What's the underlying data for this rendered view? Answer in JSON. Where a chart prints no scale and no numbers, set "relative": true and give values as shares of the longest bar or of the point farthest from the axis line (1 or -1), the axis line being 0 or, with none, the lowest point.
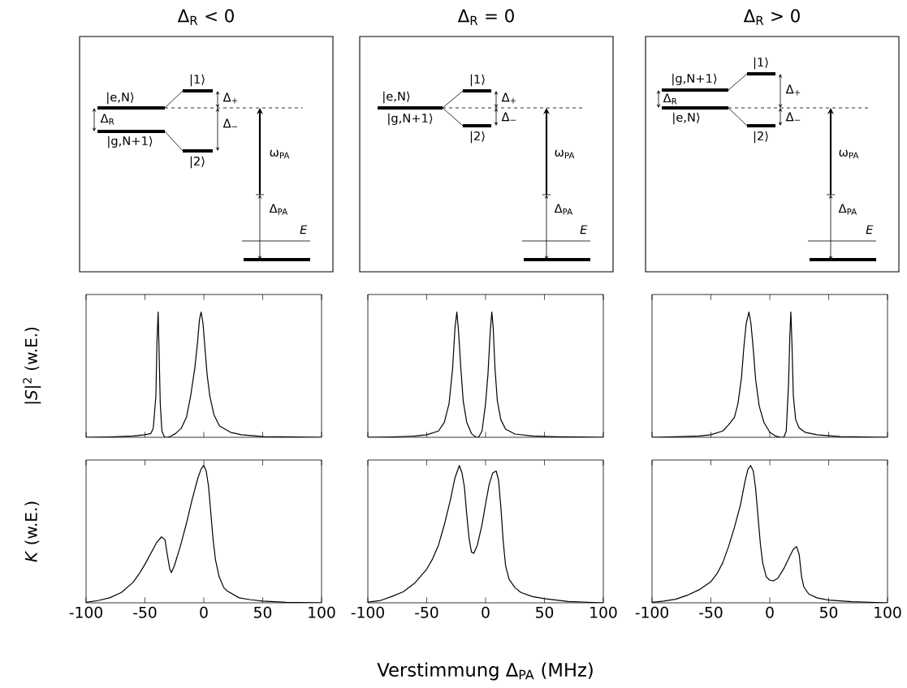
{
  "chart_data": [
    {
      "type": "other",
      "title": "Δ$_{R}$ < 0",
      "annotations": [
        "|e,N⟩",
        "|g,N+1⟩",
        "|1⟩",
        "|2⟩",
        "Δ$_{+}$",
        "Δ$_{−}$",
        "Δ$_{R}$",
        "ω$_{PA}$",
        "Δ$_{PA}$",
        "E"
      ]
    },
    {
      "type": "other",
      "title": "Δ$_{R}$ = 0",
      "annotations": [
        "|e,N⟩",
        "|g,N+1⟩",
        "|1⟩",
        "|2⟩",
        "Δ$_{+}$",
        "Δ$_{−}$",
        "ω$_{PA}$",
        "Δ$_{PA}$",
        "E"
      ]
    },
    {
      "type": "other",
      "title": "Δ$_{R}$ > 0",
      "annotations": [
        "|g,N+1⟩",
        "|e,N⟩",
        "|1⟩",
        "|2⟩",
        "Δ$_{+}$",
        "Δ$_{−}$",
        "Δ$_{R}$",
        "ω$_{PA}$",
        "Δ$_{PA}$",
        "E"
      ]
    },
    {
      "type": "line",
      "relative": true,
      "ylabel": "|*S*|$^{2}$ (w.E.)",
      "color": "#000000",
      "xlim": [
        -100,
        100
      ],
      "xticks": [
        -100,
        -50,
        0,
        50,
        100
      ],
      "tick_labels": false,
      "x": [
        -100,
        -80,
        -60,
        -50,
        -45,
        -43,
        -42.6,
        -40.7,
        -39.8,
        -38.8,
        -37.9,
        -37,
        -35.6,
        -33.3,
        -30.9,
        -28.6,
        -24,
        -19.3,
        -14.7,
        -11.2,
        -7.7,
        -5.3,
        -3.7,
        -2.3,
        -0.7,
        0.9,
        2.8,
        5.1,
        8.6,
        13.3,
        22.6,
        31.9,
        50.5,
        78,
        100
      ],
      "values": [
        0,
        0.003,
        0.01,
        0.02,
        0.03,
        0.07,
        0.11,
        0.33,
        0.76,
        1.0,
        0.65,
        0.27,
        0.05,
        0,
        0,
        0.006,
        0.03,
        0.07,
        0.16,
        0.33,
        0.55,
        0.76,
        0.94,
        1.0,
        0.91,
        0.72,
        0.5,
        0.33,
        0.18,
        0.09,
        0.04,
        0.02,
        0.006,
        0.002,
        0
      ]
    },
    {
      "type": "line",
      "relative": true,
      "color": "#000000",
      "xlim": [
        -100,
        100
      ],
      "xticks": [
        -100,
        -50,
        0,
        50,
        100
      ],
      "tick_labels": false,
      "x": [
        -100,
        -80,
        -60,
        -50,
        -40,
        -35,
        -31,
        -28,
        -26,
        -24.4,
        -23,
        -21,
        -19,
        -16,
        -12,
        -8,
        -6,
        -3,
        0,
        2,
        4,
        5.3,
        6.5,
        8,
        10,
        13,
        17,
        25,
        40,
        60,
        80,
        100
      ],
      "values": [
        0,
        0.003,
        0.01,
        0.02,
        0.05,
        0.12,
        0.27,
        0.55,
        0.87,
        1.0,
        0.85,
        0.55,
        0.29,
        0.12,
        0.03,
        0,
        0,
        0.05,
        0.27,
        0.5,
        0.85,
        1.0,
        0.87,
        0.55,
        0.29,
        0.14,
        0.065,
        0.026,
        0.01,
        0.004,
        0.002,
        0
      ]
    },
    {
      "type": "line",
      "relative": true,
      "color": "#000000",
      "xlim": [
        -100,
        100
      ],
      "xticks": [
        -100,
        -50,
        0,
        50,
        100
      ],
      "tick_labels": false,
      "x": [
        -100,
        -80,
        -60,
        -50,
        -40,
        -35,
        -30,
        -27,
        -24,
        -22,
        -20,
        -17.7,
        -16,
        -14,
        -12,
        -9,
        -5,
        0,
        5,
        9,
        12,
        14,
        16,
        17,
        17.9,
        18.8,
        20,
        22,
        25,
        30,
        40,
        60,
        80,
        100
      ],
      "values": [
        0,
        0.004,
        0.01,
        0.02,
        0.05,
        0.1,
        0.16,
        0.27,
        0.48,
        0.72,
        0.91,
        1.0,
        0.91,
        0.7,
        0.46,
        0.25,
        0.12,
        0.04,
        0.01,
        0,
        0,
        0.05,
        0.44,
        0.8,
        1.0,
        0.76,
        0.33,
        0.14,
        0.075,
        0.04,
        0.02,
        0.006,
        0.002,
        0
      ]
    },
    {
      "type": "line",
      "relative": true,
      "ylabel": "*K* (w.E.)",
      "color": "#000000",
      "xlim": [
        -100,
        100
      ],
      "xticks": [
        -100,
        -50,
        0,
        50,
        100
      ],
      "tick_labels": "x",
      "x": [
        -100,
        -90,
        -80,
        -70,
        -60,
        -55,
        -50,
        -45,
        -40,
        -36,
        -33,
        -31,
        -29,
        -27.5,
        -25,
        -20,
        -15,
        -10,
        -5,
        -2,
        0,
        2,
        4,
        6,
        8,
        10,
        13,
        17,
        20,
        30,
        40,
        50,
        70,
        100
      ],
      "values": [
        0.004,
        0.016,
        0.036,
        0.075,
        0.15,
        0.21,
        0.28,
        0.36,
        0.44,
        0.48,
        0.46,
        0.35,
        0.25,
        0.22,
        0.27,
        0.41,
        0.57,
        0.75,
        0.91,
        0.98,
        1.0,
        0.96,
        0.85,
        0.65,
        0.45,
        0.31,
        0.19,
        0.11,
        0.085,
        0.036,
        0.022,
        0.012,
        0.004,
        0
      ]
    },
    {
      "type": "line",
      "relative": true,
      "xlabel": "Verstimmung Δ$_{PA}$ (MHz)",
      "color": "#000000",
      "xlim": [
        -100,
        100
      ],
      "xticks": [
        -100,
        -50,
        0,
        50,
        100
      ],
      "tick_labels": "x",
      "x": [
        -100,
        -90,
        -80,
        -70,
        -60,
        -50,
        -45,
        -40,
        -35,
        -30,
        -26,
        -22.3,
        -20,
        -18,
        -16,
        -14,
        -12,
        -10,
        -7,
        -3,
        0,
        3,
        6,
        9,
        11,
        13,
        15,
        17,
        20,
        25,
        30,
        40,
        50,
        70,
        100
      ],
      "values": [
        0.005,
        0.015,
        0.045,
        0.08,
        0.145,
        0.245,
        0.32,
        0.42,
        0.57,
        0.745,
        0.91,
        1.0,
        0.945,
        0.845,
        0.645,
        0.47,
        0.37,
        0.36,
        0.42,
        0.57,
        0.72,
        0.86,
        0.945,
        0.96,
        0.895,
        0.695,
        0.445,
        0.27,
        0.17,
        0.11,
        0.075,
        0.045,
        0.03,
        0.01,
        0
      ]
    },
    {
      "type": "line",
      "relative": true,
      "color": "#000000",
      "xlim": [
        -100,
        100
      ],
      "xticks": [
        -100,
        -50,
        0,
        50,
        100
      ],
      "tick_labels": "x",
      "x": [
        -100,
        -90,
        -80,
        -70,
        -60,
        -50,
        -45,
        -40,
        -35,
        -30,
        -25,
        -21,
        -18.5,
        -16.3,
        -14,
        -12,
        -10,
        -8,
        -6,
        -3,
        0,
        3,
        7,
        12,
        17,
        20,
        22.8,
        25,
        27,
        29,
        33,
        40,
        50,
        70,
        100
      ],
      "values": [
        0.004,
        0.012,
        0.026,
        0.055,
        0.095,
        0.154,
        0.21,
        0.29,
        0.41,
        0.55,
        0.71,
        0.885,
        0.974,
        1.0,
        0.96,
        0.83,
        0.63,
        0.43,
        0.29,
        0.19,
        0.164,
        0.16,
        0.18,
        0.25,
        0.34,
        0.39,
        0.41,
        0.35,
        0.19,
        0.115,
        0.065,
        0.036,
        0.02,
        0.008,
        0
      ]
    }
  ]
}
